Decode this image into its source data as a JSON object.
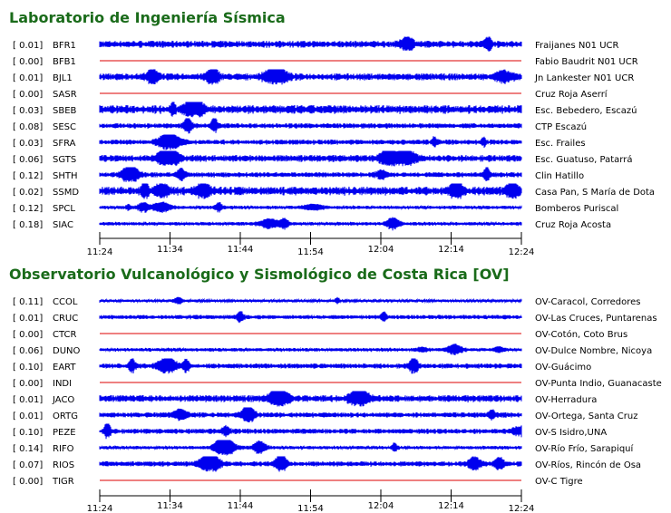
{
  "chart_data": [
    {
      "type": "line",
      "title": "Laboratorio de Ingeniería Sísmica",
      "time_ticks": [
        {
          "label": "11:24",
          "major": true
        },
        {
          "label": "11:34",
          "major": false
        },
        {
          "label": "11:44",
          "major": false
        },
        {
          "label": "11:54",
          "major": true
        },
        {
          "label": "12:04",
          "major": false
        },
        {
          "label": "12:14",
          "major": false
        },
        {
          "label": "12:24",
          "major": true
        }
      ],
      "series": [
        {
          "value": "[  0.01]",
          "name": "BFR1",
          "site": "Fraijanes N01 UCR",
          "amp": 4,
          "flat": false
        },
        {
          "value": "[  0.00]",
          "name": "BFB1",
          "site": "Fabio Baudrit N01 UCR",
          "amp": 0,
          "flat": true
        },
        {
          "value": "[  0.01]",
          "name": "BJL1",
          "site": "Jn Lankester N01 UCR",
          "amp": 4,
          "flat": false
        },
        {
          "value": "[  0.00]",
          "name": "SASR",
          "site": "Cruz Roja Aserrí",
          "amp": 0,
          "flat": true
        },
        {
          "value": "[  0.03]",
          "name": "SBEB",
          "site": "Esc. Bebedero, Escazú",
          "amp": 5,
          "flat": false
        },
        {
          "value": "[  0.08]",
          "name": "SESC",
          "site": "CTP Escazú",
          "amp": 3,
          "flat": false
        },
        {
          "value": "[  0.03]",
          "name": "SFRA",
          "site": "Esc. Frailes",
          "amp": 3,
          "flat": false
        },
        {
          "value": "[  0.06]",
          "name": "SGTS",
          "site": "Esc. Guatuso, Patarrá",
          "amp": 4,
          "flat": false
        },
        {
          "value": "[  0.12]",
          "name": "SHTH",
          "site": "Clin Hatillo",
          "amp": 3,
          "flat": false
        },
        {
          "value": "[  0.02]",
          "name": "SSMD",
          "site": "Casa Pan, S María de Dota",
          "amp": 5,
          "flat": false
        },
        {
          "value": "[  0.12]",
          "name": "SPCL",
          "site": "Bomberos Puriscal",
          "amp": 2,
          "flat": false
        },
        {
          "value": "[  0.18]",
          "name": "SIAC",
          "site": "Cruz Roja Acosta",
          "amp": 2,
          "flat": false
        }
      ]
    },
    {
      "type": "line",
      "title": "Observatorio Vulcanológico y Sismológico de Costa Rica [OV]",
      "time_ticks": [
        {
          "label": "11:24",
          "major": true
        },
        {
          "label": "11:34",
          "major": false
        },
        {
          "label": "11:44",
          "major": false
        },
        {
          "label": "11:54",
          "major": true
        },
        {
          "label": "12:04",
          "major": false
        },
        {
          "label": "12:14",
          "major": false
        },
        {
          "label": "12:24",
          "major": true
        }
      ],
      "series": [
        {
          "value": "[  0.11]",
          "name": "CCOL",
          "site": "OV-Caracol, Corredores",
          "amp": 1.5,
          "flat": false
        },
        {
          "value": "[  0.01]",
          "name": "CRUC",
          "site": "OV-Las Cruces, Puntarenas",
          "amp": 2.5,
          "flat": false
        },
        {
          "value": "[  0.00]",
          "name": "CTCR",
          "site": "OV-Cotón, Coto Brus",
          "amp": 0,
          "flat": true
        },
        {
          "value": "[  0.06]",
          "name": "DUNO",
          "site": "OV-Dulce Nombre, Nicoya",
          "amp": 2,
          "flat": false
        },
        {
          "value": "[  0.10]",
          "name": "EART",
          "site": "OV-Guácimo",
          "amp": 3,
          "flat": false
        },
        {
          "value": "[  0.00]",
          "name": "INDI",
          "site": "OV-Punta Indio, Guanacaste",
          "amp": 0,
          "flat": true
        },
        {
          "value": "[  0.01]",
          "name": "JACO",
          "site": "OV-Herradura",
          "amp": 4,
          "flat": false
        },
        {
          "value": "[  0.01]",
          "name": "ORTG",
          "site": "OV-Ortega, Santa Cruz",
          "amp": 3,
          "flat": false
        },
        {
          "value": "[  0.10]",
          "name": "PEZE",
          "site": "OV-S Isidro,UNA",
          "amp": 3,
          "flat": false
        },
        {
          "value": "[  0.14]",
          "name": "RIFO",
          "site": "OV-Río Frío, Sarapiquí",
          "amp": 2,
          "flat": false
        },
        {
          "value": "[  0.07]",
          "name": "RIOS",
          "site": "OV-Ríos, Rincón de Osa",
          "amp": 3,
          "flat": false
        },
        {
          "value": "[  0.00]",
          "name": "TIGR",
          "site": "OV-C Tigre",
          "amp": 0,
          "flat": true
        }
      ]
    }
  ],
  "colors": {
    "trace": "#0000ee",
    "flat_trace": "#dd0000",
    "title": "#1a6b1a",
    "axis": "#000000"
  }
}
